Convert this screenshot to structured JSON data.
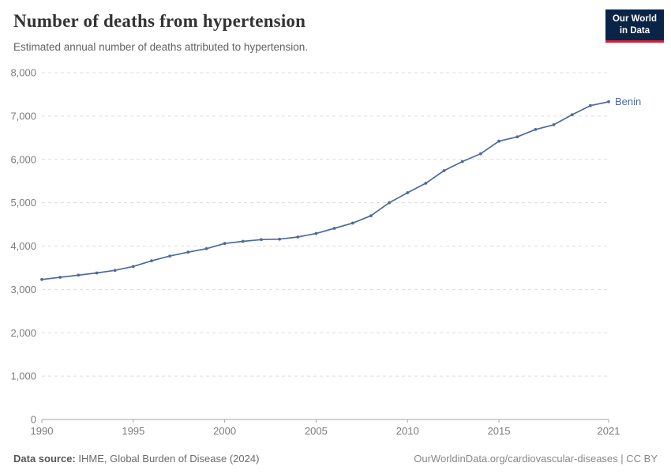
{
  "header": {
    "title": "Number of deaths from hypertension",
    "subtitle": "Estimated annual number of deaths attributed to hypertension.",
    "logo": {
      "line1": "Our World",
      "line2": "in Data",
      "bg_color": "#0a2447",
      "accent_color": "#cf2334"
    }
  },
  "chart_data": {
    "type": "line",
    "title": "Number of deaths from hypertension",
    "subtitle": "Estimated annual number of deaths attributed to hypertension.",
    "xlabel": "",
    "ylabel": "",
    "xlim": [
      1990,
      2021
    ],
    "ylim": [
      0,
      8000
    ],
    "grid": "horizontal-dashed",
    "legend_position": "end-of-line-label",
    "x_ticks": [
      1990,
      1995,
      2000,
      2005,
      2010,
      2015,
      2021
    ],
    "y_ticks": [
      0,
      1000,
      2000,
      3000,
      4000,
      5000,
      6000,
      7000,
      8000
    ],
    "y_tick_labels": [
      "0",
      "1,000",
      "2,000",
      "3,000",
      "4,000",
      "5,000",
      "6,000",
      "7,000",
      "8,000"
    ],
    "series": [
      {
        "name": "Benin",
        "color": "#4C6A9C",
        "x": [
          1990,
          1991,
          1992,
          1993,
          1994,
          1995,
          1996,
          1997,
          1998,
          1999,
          2000,
          2001,
          2002,
          2003,
          2004,
          2005,
          2006,
          2007,
          2008,
          2009,
          2010,
          2011,
          2012,
          2013,
          2014,
          2015,
          2016,
          2017,
          2018,
          2019,
          2020,
          2021
        ],
        "values": [
          3230,
          3280,
          3330,
          3380,
          3440,
          3530,
          3660,
          3770,
          3860,
          3940,
          4060,
          4110,
          4150,
          4160,
          4210,
          4290,
          4410,
          4530,
          4700,
          5000,
          5230,
          5450,
          5740,
          5950,
          6130,
          6420,
          6520,
          6690,
          6800,
          7030,
          7240,
          7330
        ]
      }
    ]
  },
  "footer": {
    "source_label": "Data source:",
    "source_value": "IHME, Global Burden of Disease (2024)",
    "link": "OurWorldinData.org/cardiovascular-diseases | CC BY"
  }
}
